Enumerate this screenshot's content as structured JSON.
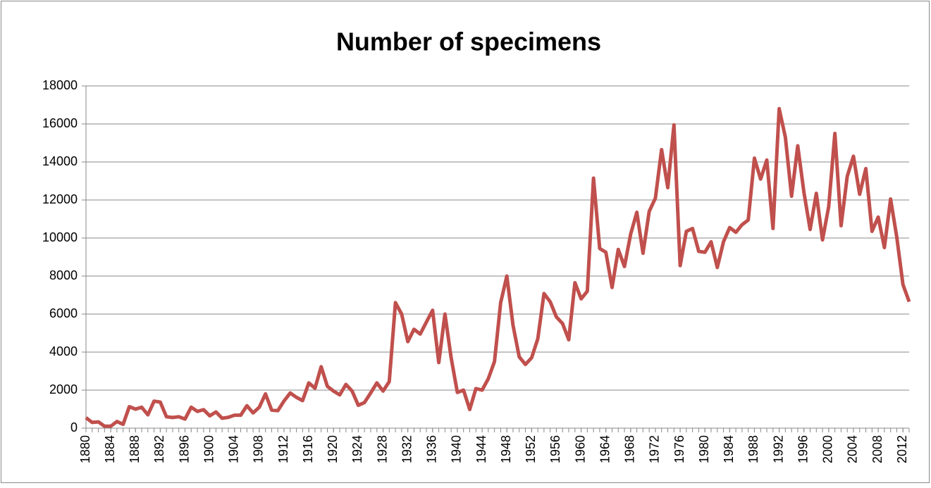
{
  "chart_data": {
    "type": "line",
    "title": "Number of specimens",
    "x": [
      1880,
      1881,
      1882,
      1883,
      1884,
      1885,
      1886,
      1887,
      1888,
      1889,
      1890,
      1891,
      1892,
      1893,
      1894,
      1895,
      1896,
      1897,
      1898,
      1899,
      1900,
      1901,
      1902,
      1903,
      1904,
      1905,
      1906,
      1907,
      1908,
      1909,
      1910,
      1911,
      1912,
      1913,
      1914,
      1915,
      1916,
      1917,
      1918,
      1919,
      1920,
      1921,
      1922,
      1923,
      1924,
      1925,
      1926,
      1927,
      1928,
      1929,
      1930,
      1931,
      1932,
      1933,
      1934,
      1935,
      1936,
      1937,
      1938,
      1939,
      1940,
      1941,
      1942,
      1943,
      1944,
      1945,
      1946,
      1947,
      1948,
      1949,
      1950,
      1951,
      1952,
      1953,
      1954,
      1955,
      1956,
      1957,
      1958,
      1959,
      1960,
      1961,
      1962,
      1963,
      1964,
      1965,
      1966,
      1967,
      1968,
      1969,
      1970,
      1971,
      1972,
      1973,
      1974,
      1975,
      1976,
      1977,
      1978,
      1979,
      1980,
      1981,
      1982,
      1983,
      1984,
      1985,
      1986,
      1987,
      1988,
      1989,
      1990,
      1991,
      1992,
      1993,
      1994,
      1995,
      1996,
      1997,
      1998,
      1999,
      2000,
      2001,
      2002,
      2003,
      2004,
      2005,
      2006,
      2007,
      2008,
      2009,
      2010,
      2011,
      2012,
      2013
    ],
    "values": [
      550,
      300,
      330,
      100,
      100,
      350,
      200,
      1130,
      1000,
      1100,
      700,
      1420,
      1370,
      600,
      560,
      600,
      480,
      1100,
      880,
      970,
      650,
      850,
      520,
      570,
      680,
      680,
      1180,
      800,
      1100,
      1800,
      950,
      920,
      1430,
      1850,
      1620,
      1450,
      2380,
      2100,
      3230,
      2200,
      1950,
      1750,
      2300,
      1950,
      1200,
      1350,
      1850,
      2380,
      1950,
      2450,
      6600,
      6000,
      4550,
      5200,
      4950,
      5580,
      6200,
      3450,
      6000,
      3700,
      1880,
      2000,
      980,
      2080,
      2000,
      2600,
      3500,
      6600,
      8000,
      5400,
      3750,
      3350,
      3700,
      4700,
      7080,
      6650,
      5850,
      5500,
      4650,
      7650,
      6800,
      7200,
      13150,
      9450,
      9250,
      7400,
      9400,
      8500,
      10200,
      11350,
      9200,
      11400,
      12100,
      14650,
      12650,
      15950,
      8550,
      10350,
      10500,
      9300,
      9250,
      9800,
      8450,
      9800,
      10550,
      10300,
      10700,
      10950,
      14200,
      13100,
      14100,
      10500,
      16800,
      15300,
      12200,
      14850,
      12400,
      10450,
      12350,
      9900,
      11650,
      15500,
      10650,
      13250,
      14300,
      12300,
      13650,
      10350,
      11100,
      9500,
      12050,
      10050,
      7550,
      6650
    ],
    "color": "#c0504d",
    "xlim": [
      1880,
      2013
    ],
    "xticks": [
      1880,
      1884,
      1888,
      1892,
      1896,
      1900,
      1904,
      1908,
      1912,
      1916,
      1920,
      1924,
      1928,
      1932,
      1936,
      1940,
      1944,
      1948,
      1952,
      1956,
      1960,
      1964,
      1968,
      1972,
      1976,
      1980,
      1984,
      1988,
      1992,
      1996,
      2000,
      2004,
      2008,
      2012
    ],
    "ylim": [
      0,
      18000
    ],
    "yticks": [
      0,
      2000,
      4000,
      6000,
      8000,
      10000,
      12000,
      14000,
      16000,
      18000
    ],
    "grid": true
  }
}
